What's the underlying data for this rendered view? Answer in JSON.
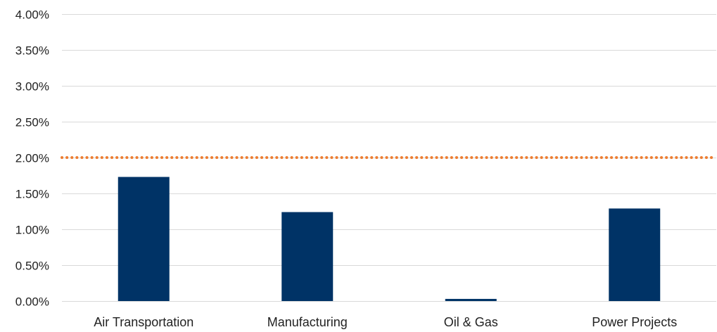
{
  "chart_data": {
    "type": "bar",
    "title": "",
    "xlabel": "",
    "ylabel": "",
    "categories": [
      "Air Transportation",
      "Manufacturing",
      "Oil & Gas",
      "Power Projects"
    ],
    "values": [
      1.73,
      1.24,
      0.03,
      1.29
    ],
    "ylim": [
      0,
      4
    ],
    "y_ticks": [
      "0.00%",
      "0.50%",
      "1.00%",
      "1.50%",
      "2.00%",
      "2.50%",
      "3.00%",
      "3.50%",
      "4.00%"
    ],
    "y_tick_values": [
      0,
      0.5,
      1,
      1.5,
      2,
      2.5,
      3,
      3.5,
      4
    ],
    "reference_line": {
      "value": 2.0,
      "style": "dotted",
      "color": "#ed7d31"
    },
    "grid": true,
    "legend": "none",
    "colors": {
      "bar": "#003366",
      "grid": "#d9d9d9",
      "reference": "#ed7d31"
    }
  }
}
